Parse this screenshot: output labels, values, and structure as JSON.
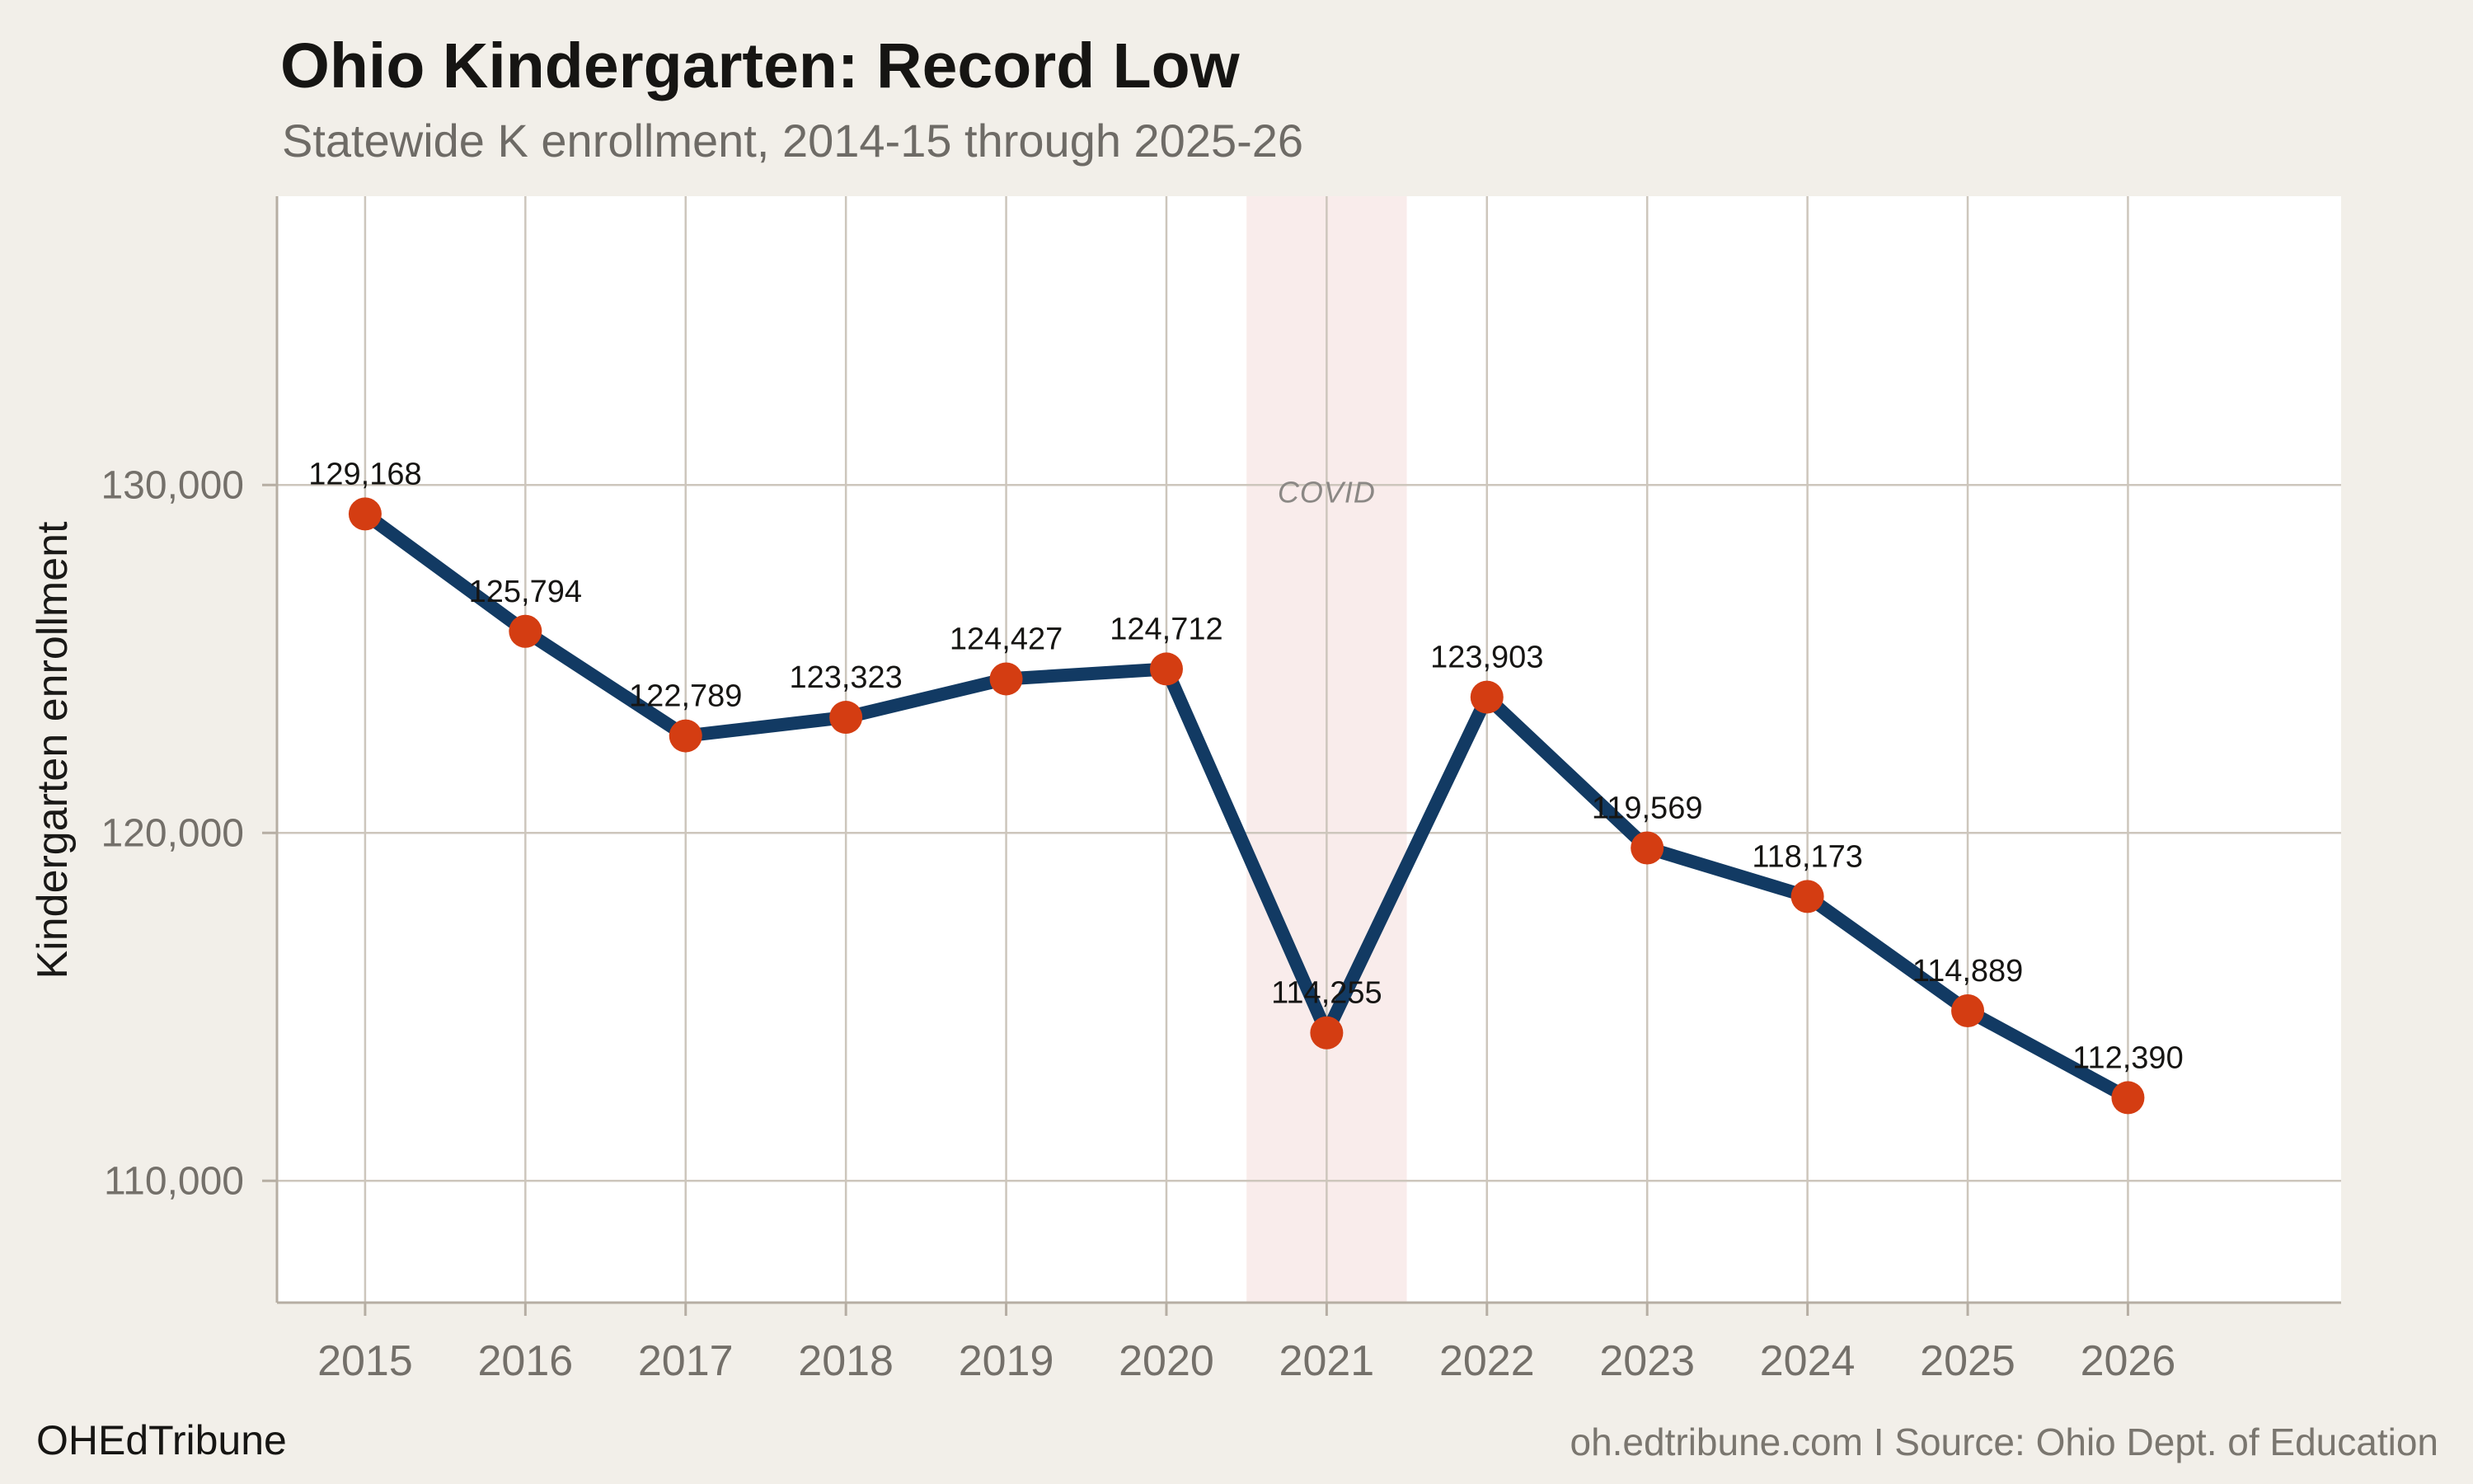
{
  "header": {
    "title": "Ohio Kindergarten: Record Low",
    "subtitle": "Statewide K enrollment, 2014-15 through 2025-26"
  },
  "footer": {
    "brand": "OHEdTribune",
    "attribution": "oh.edtribune.com I Source: Ohio Dept. of Education"
  },
  "chart_data": {
    "type": "line",
    "title": "Ohio Kindergarten: Record Low",
    "subtitle": "Statewide K enrollment, 2014-15 through 2025-26",
    "xlabel": "",
    "ylabel": "Kindergarten enrollment",
    "x": [
      2015,
      2016,
      2017,
      2018,
      2019,
      2020,
      2021,
      2022,
      2023,
      2024,
      2025,
      2026
    ],
    "x_tick_labels": [
      "2015",
      "2016",
      "2017",
      "2018",
      "2019",
      "2020",
      "2021",
      "2022",
      "2023",
      "2024",
      "2025",
      "2026"
    ],
    "values": [
      129168,
      125794,
      122789,
      123323,
      124427,
      124712,
      114255,
      123903,
      119569,
      118173,
      114889,
      112390
    ],
    "point_labels": [
      "129,168",
      "125,794",
      "122,789",
      "123,323",
      "124,427",
      "124,712",
      "114,255",
      "123,903",
      "119,569",
      "118,173",
      "114,889",
      "112,390"
    ],
    "yticks": [
      110000,
      120000,
      130000
    ],
    "ytick_labels": [
      "110,000",
      "120,000",
      "130,000"
    ],
    "ylim": [
      106500,
      138300
    ],
    "xlim": [
      2014.45,
      2027.33
    ],
    "grid": true,
    "legend": "none",
    "annotations": [
      {
        "type": "vband",
        "x0": 2020.5,
        "x1": 2021.5,
        "label": "COVID",
        "label_x": 2021,
        "label_y": 129500
      }
    ],
    "colors": {
      "line": "#123a63",
      "point": "#d43d12",
      "band": "#f9eceb",
      "plot_bg": "#ffffff",
      "page_bg": "#f2efe9",
      "grid": "#cdc6bc",
      "axis": "#b6aea3",
      "title": "#161513",
      "subtitle": "#6e6b66",
      "tick_label": "#74706a",
      "data_label": "#161513",
      "annotation_label": "#8b8885",
      "footer_brand": "#161513",
      "footer_attribution": "#7a766f"
    }
  }
}
